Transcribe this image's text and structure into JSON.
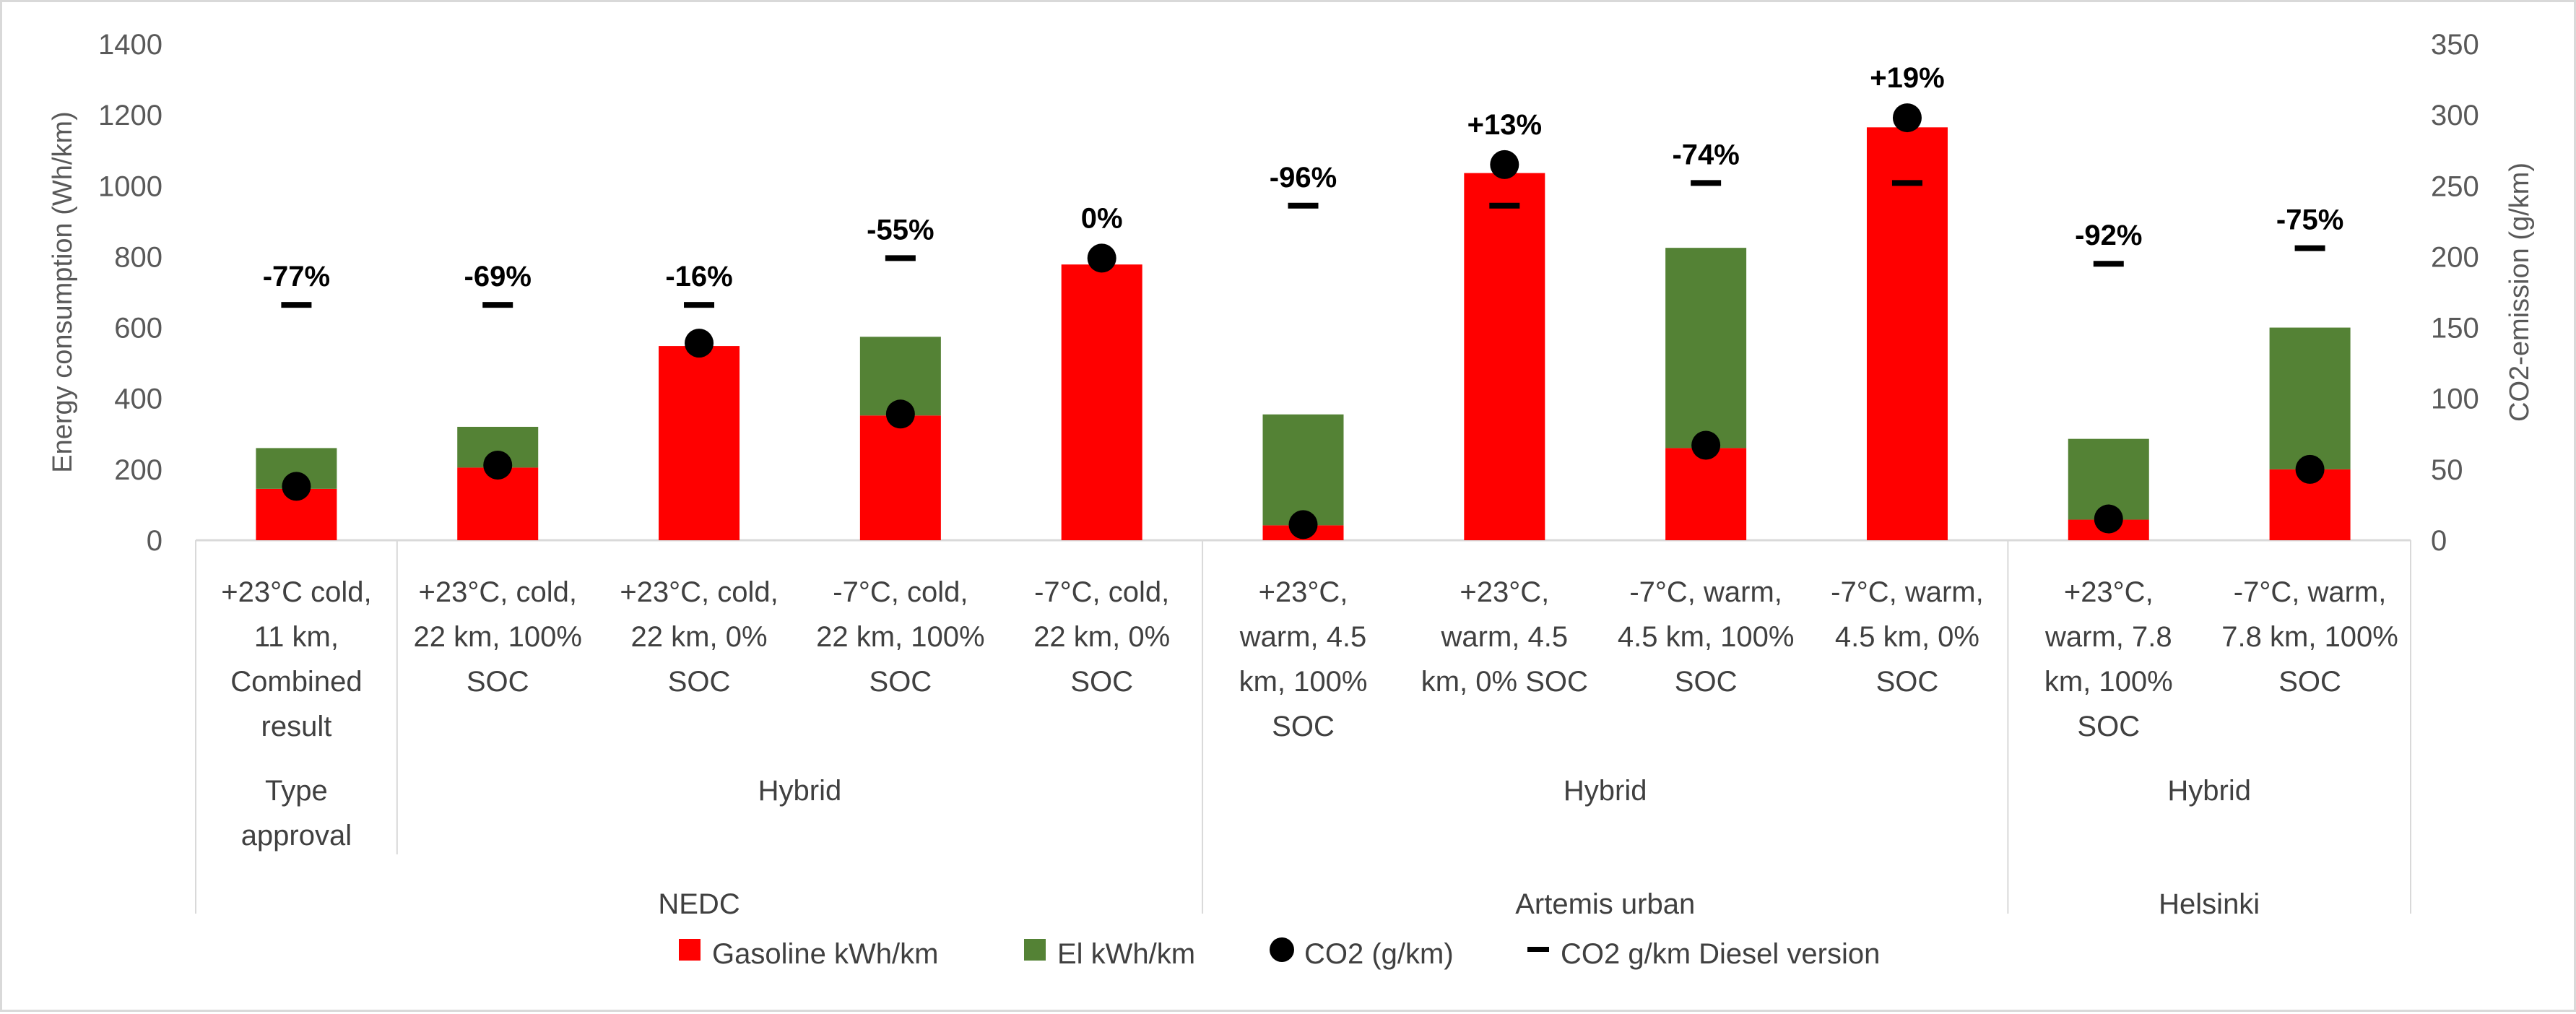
{
  "chart_data": {
    "type": "bar",
    "stacked": true,
    "title": "",
    "categories": [
      "+23°C cold, 11 km, Combined result",
      "+23°C, cold, 22 km, 100% SOC",
      "+23°C, cold, 22 km, 0% SOC",
      "-7°C, cold, 22 km, 100% SOC",
      "-7°C, cold, 22 km, 0% SOC",
      "+23°C, warm, 4.5 km, 100% SOC",
      "+23°C, warm, 4.5 km, 0% SOC",
      "-7°C, warm, 4.5 km, 100% SOC",
      "-7°C, warm, 4.5 km, 0% SOC",
      "+23°C, warm, 7.8 km, 100% SOC",
      "-7°C, warm, 7.8 km, 100% SOC"
    ],
    "category_lines": [
      [
        "+23°C cold,",
        "11 km,",
        "Combined",
        "result"
      ],
      [
        "+23°C, cold,",
        "22 km, 100%",
        "SOC"
      ],
      [
        "+23°C, cold,",
        "22 km, 0%",
        "SOC"
      ],
      [
        "-7°C, cold,",
        "22 km, 100%",
        "SOC"
      ],
      [
        "-7°C, cold,",
        "22 km, 0%",
        "SOC"
      ],
      [
        "+23°C,",
        "warm, 4.5",
        "km, 100%",
        "SOC"
      ],
      [
        "+23°C,",
        "warm, 4.5",
        "km, 0% SOC"
      ],
      [
        "-7°C, warm,",
        "4.5 km, 100%",
        "SOC"
      ],
      [
        "-7°C, warm,",
        "4.5 km, 0%",
        "SOC"
      ],
      [
        "+23°C,",
        "warm, 7.8",
        "km, 100%",
        "SOC"
      ],
      [
        "-7°C, warm,",
        "7.8 km, 100%",
        "SOC"
      ]
    ],
    "group_level2": [
      {
        "lines": [
          "Type",
          "approval"
        ],
        "span": [
          0,
          0
        ]
      },
      {
        "lines": [
          "Hybrid"
        ],
        "span": [
          1,
          4
        ]
      },
      {
        "lines": [
          "Hybrid"
        ],
        "span": [
          5,
          8
        ]
      },
      {
        "lines": [
          "Hybrid"
        ],
        "span": [
          9,
          10
        ]
      }
    ],
    "group_level3": [
      {
        "label": "NEDC",
        "span": [
          0,
          4
        ]
      },
      {
        "label": "Artemis urban",
        "span": [
          5,
          8
        ]
      },
      {
        "label": "Helsinki",
        "span": [
          9,
          10
        ]
      }
    ],
    "series": [
      {
        "name": "Gasoline kWh/km",
        "axis": "left",
        "color": "#ff0000",
        "values": [
          145,
          205,
          548,
          352,
          778,
          42,
          1036,
          260,
          1165,
          58,
          200
        ]
      },
      {
        "name": "El kWh/km",
        "axis": "left",
        "color": "#548235",
        "values": [
          115,
          115,
          0,
          222,
          0,
          313,
          0,
          565,
          0,
          228,
          400
        ]
      },
      {
        "name": "CO2 (g/km)",
        "axis": "right",
        "marker": "circle",
        "color": "#000000",
        "values": [
          38,
          53,
          139,
          89,
          199,
          11,
          265,
          67,
          298,
          15,
          50
        ]
      },
      {
        "name": "CO2 g/km Diesel version",
        "axis": "right",
        "marker": "dash",
        "color": "#000000",
        "values": [
          166,
          166,
          166,
          199,
          null,
          236,
          236,
          252,
          252,
          195,
          206
        ]
      }
    ],
    "data_labels": [
      "-77%",
      "-69%",
      "-16%",
      "-55%",
      "0%",
      "-96%",
      "+13%",
      "-74%",
      "+19%",
      "-92%",
      "-75%"
    ],
    "ylabel": "Energy consumption (Wh/km)",
    "ylim": [
      0,
      1400
    ],
    "yticks": [
      "0",
      "200",
      "400",
      "600",
      "800",
      "1000",
      "1200",
      "1400"
    ],
    "y2label": "CO2-emission (g/km)",
    "y2lim": [
      0,
      350
    ],
    "y2ticks": [
      "0",
      "50",
      "100",
      "150",
      "200",
      "250",
      "300",
      "350"
    ],
    "legend": {
      "placement": "bottom",
      "items": [
        "Gasoline kWh/km",
        "El kWh/km",
        "CO2 (g/km)",
        "CO2 g/km Diesel version"
      ]
    },
    "grid": false
  }
}
